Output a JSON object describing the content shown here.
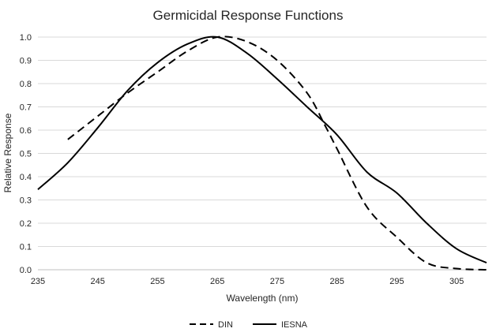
{
  "chart_data": {
    "type": "line",
    "title": "Germicidal Response Functions",
    "xlabel": "Wavelength (nm)",
    "ylabel": "Relative Response",
    "xlim": [
      235,
      310
    ],
    "ylim": [
      0,
      1.0
    ],
    "x_ticks": [
      "235",
      "245",
      "255",
      "265",
      "275",
      "285",
      "295",
      "305"
    ],
    "y_ticks": [
      "0.0",
      "0.1",
      "0.2",
      "0.3",
      "0.4",
      "0.5",
      "0.6",
      "0.7",
      "0.8",
      "0.9",
      "1.0"
    ],
    "grid": "horizontal",
    "legend": "bottom",
    "series": [
      {
        "name": "DIN",
        "style": "dashed",
        "color": "#000000",
        "x": [
          240,
          245,
          250,
          255,
          260,
          265,
          270,
          275,
          280,
          283,
          285,
          290,
          295,
          300,
          305,
          310
        ],
        "values": [
          0.56,
          0.66,
          0.76,
          0.85,
          0.94,
          1.0,
          0.98,
          0.9,
          0.76,
          0.62,
          0.52,
          0.27,
          0.14,
          0.03,
          0.005,
          0.0
        ]
      },
      {
        "name": "IESNA",
        "style": "solid",
        "color": "#000000",
        "x": [
          235,
          240,
          245,
          250,
          255,
          260,
          265,
          270,
          275,
          280,
          285,
          290,
          295,
          300,
          305,
          310
        ],
        "values": [
          0.345,
          0.46,
          0.61,
          0.77,
          0.89,
          0.97,
          1.0,
          0.93,
          0.82,
          0.7,
          0.58,
          0.42,
          0.33,
          0.2,
          0.09,
          0.03
        ]
      }
    ]
  }
}
